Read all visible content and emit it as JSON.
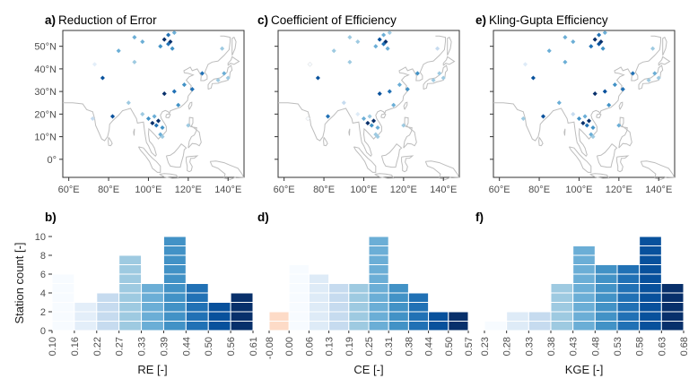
{
  "ylabel": "Station count [-]",
  "panels": [
    {
      "label": "a)",
      "title": "Reduction of Error"
    },
    {
      "label": "c)",
      "title": "Coefficient of Efficiency"
    },
    {
      "label": "e)",
      "title": "Kling-Gupta Efficiency"
    }
  ],
  "map_axes": {
    "lon_ticks": [
      "60°E",
      "80°E",
      "100°E",
      "120°E",
      "140°E"
    ],
    "lat_ticks": [
      "50°N",
      "40°N",
      "30°N",
      "20°N",
      "10°N",
      "0°"
    ]
  },
  "chart_data": [
    {
      "type": "bar",
      "panel": "b)",
      "xlabel": "RE [-]",
      "ylabel": "Station count [-]",
      "ylim": [
        0,
        10
      ],
      "yticks": [
        0,
        2,
        4,
        6,
        8,
        10
      ],
      "edges": [
        "0.10",
        "0.16",
        "0.22",
        "0.27",
        "0.33",
        "0.39",
        "0.44",
        "0.50",
        "0.56",
        "0.61"
      ],
      "values": [
        6,
        3,
        4,
        8,
        5,
        10,
        5,
        3,
        4
      ],
      "colors": [
        "#f7fbff",
        "#e3eef9",
        "#c6dbef",
        "#9ecae1",
        "#6baed6",
        "#4292c6",
        "#2171b5",
        "#08519c",
        "#08306b"
      ]
    },
    {
      "type": "bar",
      "panel": "d)",
      "xlabel": "CE [-]",
      "ylim": [
        0,
        10
      ],
      "edges": [
        "-0.08",
        "0.00",
        "0.06",
        "0.13",
        "0.19",
        "0.25",
        "0.31",
        "0.38",
        "0.44",
        "0.50",
        "0.57"
      ],
      "values": [
        2,
        7,
        6,
        5,
        5,
        10,
        5,
        4,
        2,
        2
      ],
      "colors": [
        "#fddbc7",
        "#f7fbff",
        "#deebf7",
        "#c6dbef",
        "#9ecae1",
        "#6baed6",
        "#4292c6",
        "#2171b5",
        "#08519c",
        "#08306b"
      ]
    },
    {
      "type": "bar",
      "panel": "f)",
      "xlabel": "KGE [-]",
      "ylim": [
        0,
        10
      ],
      "edges": [
        "0.23",
        "0.28",
        "0.33",
        "0.38",
        "0.43",
        "0.48",
        "0.53",
        "0.58",
        "0.63",
        "0.68"
      ],
      "values": [
        1,
        2,
        2,
        5,
        9,
        7,
        7,
        10,
        5
      ],
      "colors": [
        "#f7fbff",
        "#deebf7",
        "#c6dbef",
        "#9ecae1",
        "#6baed6",
        "#4292c6",
        "#2171b5",
        "#08519c",
        "#08306b"
      ]
    }
  ],
  "stations": [
    {
      "lon": 110,
      "lat": 55,
      "re": 0.45,
      "ce": 0.3,
      "kge": 0.55
    },
    {
      "lon": 113,
      "lat": 56,
      "re": 0.35,
      "ce": 0.22,
      "kge": 0.45
    },
    {
      "lon": 108,
      "lat": 53,
      "re": 0.58,
      "ce": 0.48,
      "kge": 0.65
    },
    {
      "lon": 111,
      "lat": 52,
      "re": 0.6,
      "ce": 0.55,
      "kge": 0.66
    },
    {
      "lon": 110,
      "lat": 51,
      "re": 0.5,
      "ce": 0.4,
      "kge": 0.6
    },
    {
      "lon": 106,
      "lat": 50,
      "re": 0.44,
      "ce": 0.3,
      "kge": 0.55
    },
    {
      "lon": 112,
      "lat": 49,
      "re": 0.4,
      "ce": 0.28,
      "kge": 0.5
    },
    {
      "lon": 93,
      "lat": 54,
      "re": 0.38,
      "ce": 0.25,
      "kge": 0.45
    },
    {
      "lon": 97,
      "lat": 52,
      "re": 0.36,
      "ce": 0.23,
      "kge": 0.47
    },
    {
      "lon": 85,
      "lat": 48,
      "re": 0.37,
      "ce": 0.2,
      "kge": 0.48
    },
    {
      "lon": 137,
      "lat": 49,
      "re": 0.3,
      "ce": 0.18,
      "kge": 0.4
    },
    {
      "lon": 73,
      "lat": 42,
      "re": 0.2,
      "ce": 0.05,
      "kge": 0.3
    },
    {
      "lon": 77,
      "lat": 36,
      "re": 0.55,
      "ce": 0.45,
      "kge": 0.62
    },
    {
      "lon": 93,
      "lat": 43,
      "re": 0.33,
      "ce": 0.2,
      "kge": 0.44
    },
    {
      "lon": 127,
      "lat": 38,
      "re": 0.45,
      "ce": 0.32,
      "kge": 0.55
    },
    {
      "lon": 135,
      "lat": 35,
      "re": 0.3,
      "ce": 0.2,
      "kge": 0.4
    },
    {
      "lon": 140,
      "lat": 36,
      "re": 0.28,
      "ce": 0.22,
      "kge": 0.42
    },
    {
      "lon": 138,
      "lat": 38,
      "re": 0.35,
      "ce": 0.25,
      "kge": 0.45
    },
    {
      "lon": 118,
      "lat": 33,
      "re": 0.4,
      "ce": 0.3,
      "kge": 0.5
    },
    {
      "lon": 122,
      "lat": 31,
      "re": 0.45,
      "ce": 0.35,
      "kge": 0.58
    },
    {
      "lon": 108,
      "lat": 29,
      "re": 0.58,
      "ce": 0.5,
      "kge": 0.64
    },
    {
      "lon": 113,
      "lat": 30,
      "re": 0.5,
      "ce": 0.4,
      "kge": 0.6
    },
    {
      "lon": 115,
      "lat": 24,
      "re": 0.4,
      "ce": 0.3,
      "kge": 0.5
    },
    {
      "lon": 90,
      "lat": 25,
      "re": 0.3,
      "ce": 0.18,
      "kge": 0.45
    },
    {
      "lon": 72,
      "lat": 18,
      "re": 0.25,
      "ce": 0.05,
      "kge": 0.4
    },
    {
      "lon": 82,
      "lat": 19,
      "re": 0.52,
      "ce": 0.4,
      "kge": 0.6
    },
    {
      "lon": 97,
      "lat": 20,
      "re": 0.28,
      "ce": 0.1,
      "kge": 0.38
    },
    {
      "lon": 100,
      "lat": 18,
      "re": 0.4,
      "ce": 0.3,
      "kge": 0.5
    },
    {
      "lon": 103,
      "lat": 19,
      "re": 0.35,
      "ce": 0.25,
      "kge": 0.46
    },
    {
      "lon": 105,
      "lat": 17,
      "re": 0.58,
      "ce": 0.52,
      "kge": 0.66
    },
    {
      "lon": 102,
      "lat": 16,
      "re": 0.6,
      "ce": 0.55,
      "kge": 0.66
    },
    {
      "lon": 104,
      "lat": 15,
      "re": 0.46,
      "ce": 0.35,
      "kge": 0.56
    },
    {
      "lon": 107,
      "lat": 14,
      "re": 0.4,
      "ce": 0.3,
      "kge": 0.52
    },
    {
      "lon": 106,
      "lat": 11,
      "re": 0.35,
      "ce": 0.25,
      "kge": 0.45
    },
    {
      "lon": 107,
      "lat": 10,
      "re": 0.3,
      "ce": 0.2,
      "kge": 0.42
    },
    {
      "lon": 120,
      "lat": 15,
      "re": 0.32,
      "ce": 0.22,
      "kge": 0.44
    }
  ]
}
